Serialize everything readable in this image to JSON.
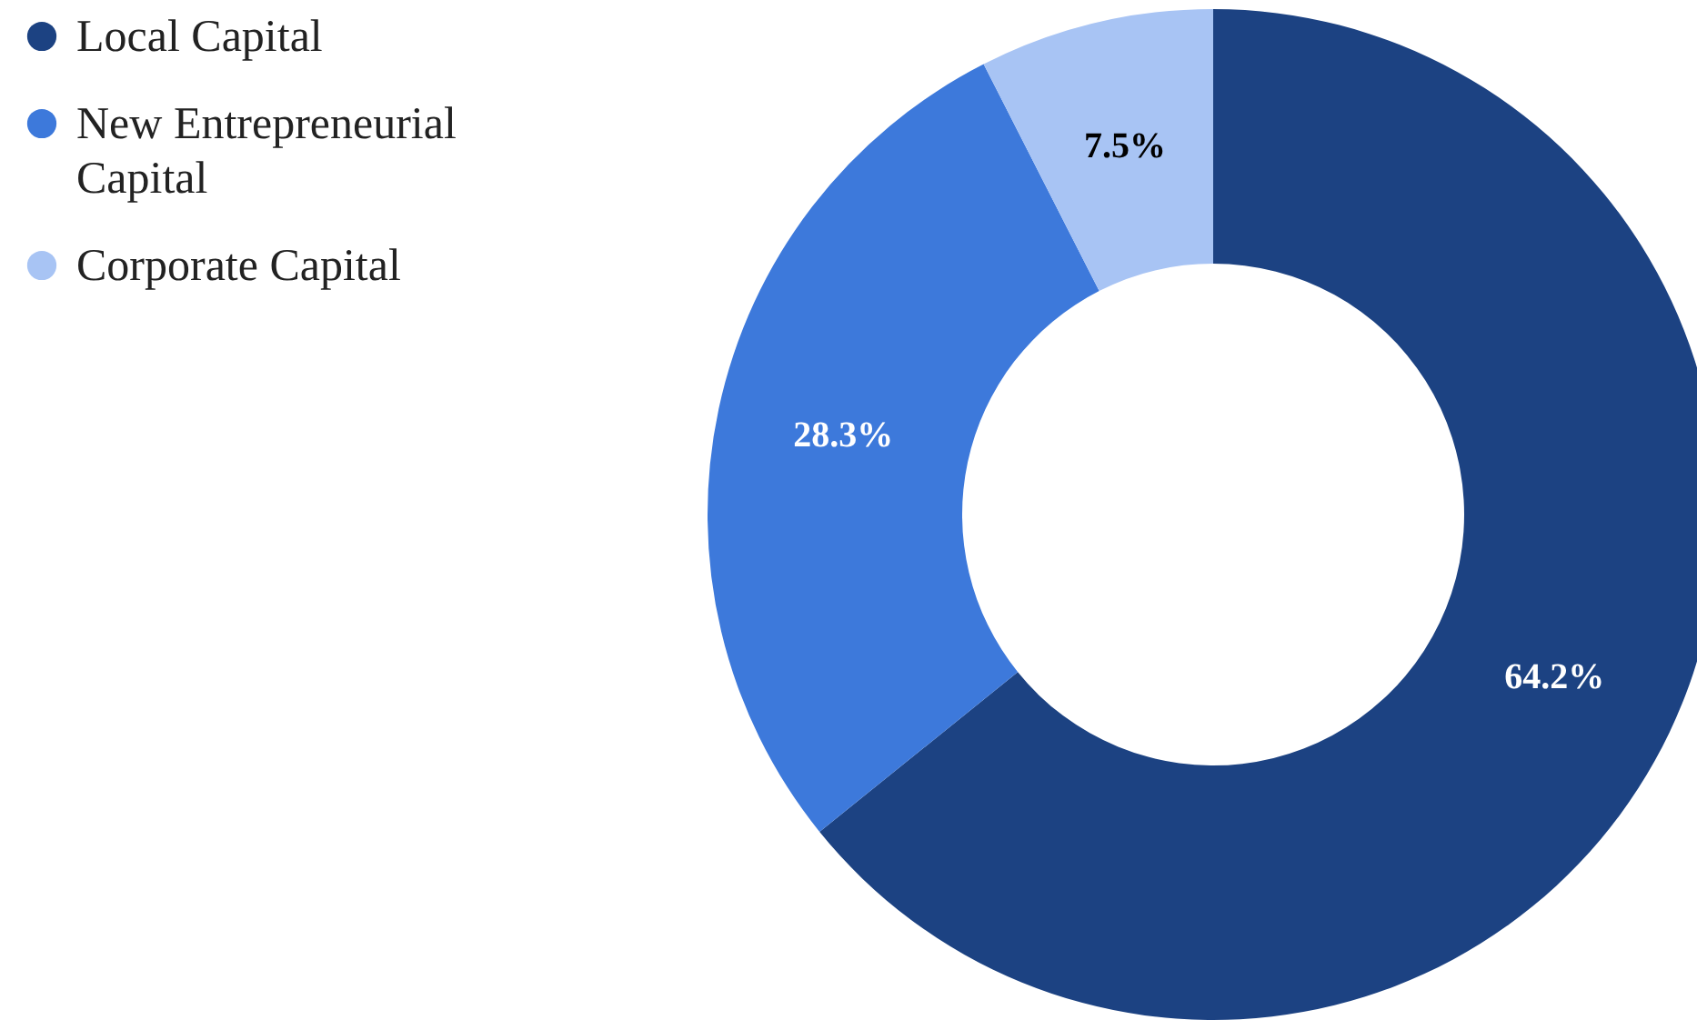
{
  "chart_data": {
    "type": "donut",
    "categories": [
      "Local Capital",
      "New Entrepreneurial Capital",
      "Corporate Capital"
    ],
    "values": [
      64.2,
      28.3,
      7.5
    ],
    "colors": [
      "#1c4282",
      "#3d79db",
      "#a8c4f4"
    ],
    "value_labels": [
      "64.2%",
      "28.3%",
      "7.5%"
    ],
    "legend": "top left"
  }
}
